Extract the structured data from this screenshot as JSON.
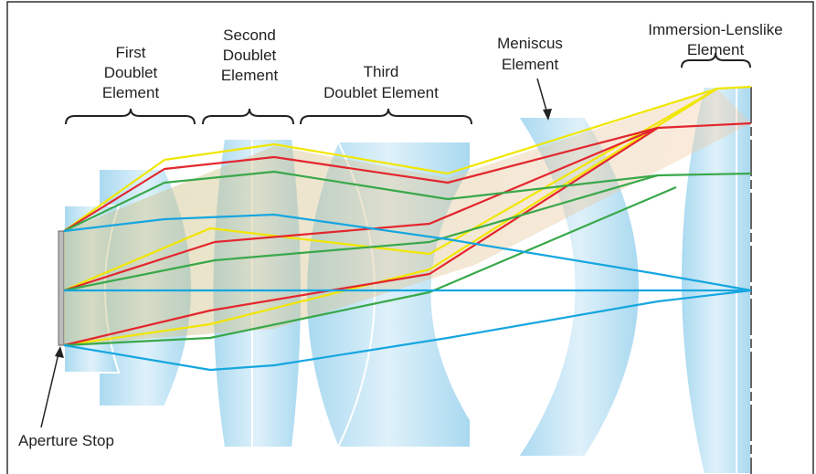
{
  "labels": [
    {
      "lines": [
        "First",
        "Doublet",
        "Element"
      ]
    },
    {
      "lines": [
        "Second",
        "Doublet",
        "Element"
      ]
    },
    {
      "lines": [
        "Third",
        "Doublet Element"
      ]
    },
    {
      "lines": [
        "Meniscus",
        "Element"
      ]
    },
    {
      "lines": [
        "Immersion-Lenslike",
        "Element"
      ]
    },
    {
      "lines": [
        "Aperture Stop"
      ]
    }
  ]
}
